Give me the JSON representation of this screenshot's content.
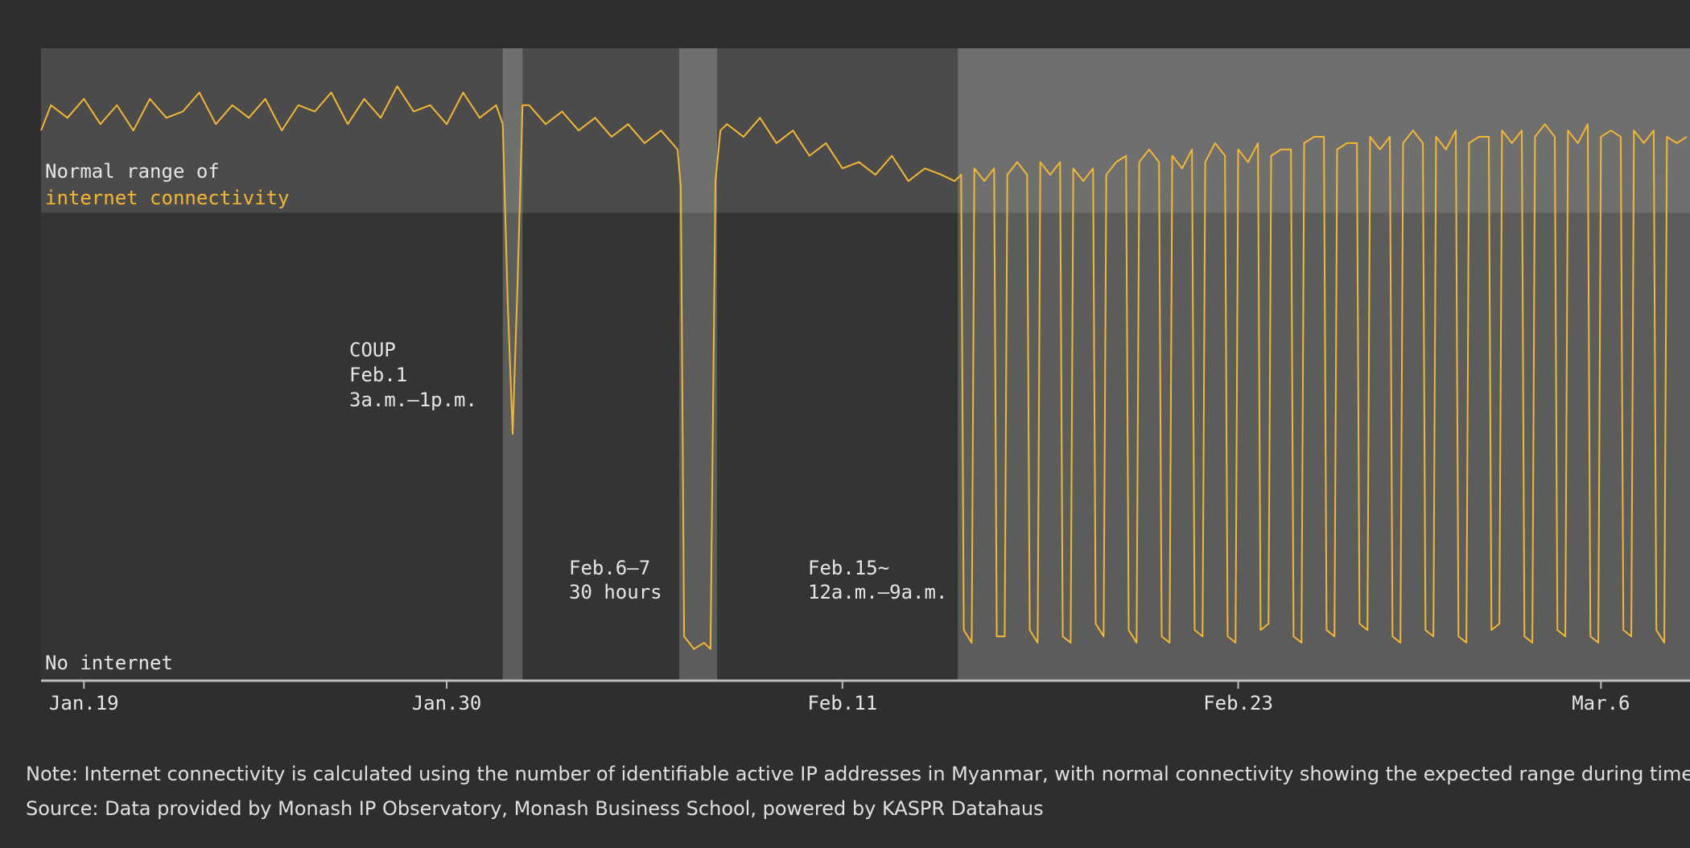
{
  "chart_data": {
    "type": "line",
    "x": [
      17.7,
      18,
      18.5,
      19,
      19.5,
      20,
      20.5,
      21,
      21.5,
      22,
      22.5,
      23,
      23.5,
      24,
      24.5,
      25,
      25.5,
      26,
      26.5,
      27,
      27.5,
      28,
      28.5,
      29,
      29.5,
      30,
      30.5,
      31,
      31.5,
      31.7,
      31.85,
      32.0,
      32.15,
      32.3,
      32.5,
      33,
      33.5,
      34,
      34.5,
      35,
      35.5,
      36,
      36.5,
      37.0,
      37.1,
      37.2,
      37.5,
      37.8,
      38.0,
      38.15,
      38.3,
      38.5,
      39,
      39.5,
      40,
      40.5,
      41,
      41.5,
      42,
      42.5,
      43,
      43.5,
      44,
      44.5,
      45,
      45.4,
      45.6,
      45.68,
      45.92,
      46,
      46.3,
      46.6,
      46.68,
      46.92,
      47,
      47.3,
      47.6,
      47.68,
      47.92,
      48,
      48.3,
      48.6,
      48.68,
      48.92,
      49,
      49.3,
      49.6,
      49.68,
      49.92,
      50,
      50.3,
      50.6,
      50.68,
      50.92,
      51,
      51.3,
      51.6,
      51.68,
      51.92,
      52,
      52.3,
      52.6,
      52.68,
      52.92,
      53,
      53.3,
      53.6,
      53.68,
      53.92,
      54,
      54.3,
      54.6,
      54.68,
      54.92,
      55,
      55.3,
      55.6,
      55.68,
      55.92,
      56,
      56.3,
      56.6,
      56.68,
      56.92,
      57,
      57.3,
      57.6,
      57.68,
      57.92,
      58,
      58.3,
      58.6,
      58.68,
      58.92,
      59,
      59.3,
      59.6,
      59.68,
      59.92,
      60,
      60.3,
      60.6,
      60.68,
      60.92,
      61,
      61.3,
      61.6,
      61.68,
      61.92,
      62,
      62.3,
      62.6,
      62.68,
      62.92,
      63,
      63.3,
      63.6,
      63.68,
      63.92,
      64,
      64.3,
      64.6,
      64.68,
      64.92,
      65,
      65.3,
      65.6,
      65.68,
      65.92,
      66,
      66.3,
      66.6,
      66.68,
      66.92,
      67,
      67.3,
      67.6
    ],
    "series": [
      {
        "color": "#f5b731",
        "values": [
          87,
          91,
          89,
          92,
          88,
          91,
          87,
          92,
          89,
          90,
          93,
          88,
          91,
          89,
          92,
          87,
          91,
          90,
          93,
          88,
          92,
          89,
          94,
          90,
          91,
          88,
          93,
          89,
          91,
          88,
          60,
          39,
          63,
          91,
          91,
          88,
          90,
          87,
          89,
          86,
          88,
          85,
          87,
          84,
          78,
          7,
          5,
          6,
          5,
          79,
          87,
          88,
          86,
          89,
          85,
          87,
          83,
          85,
          81,
          82,
          80,
          83,
          79,
          81,
          80,
          79,
          80,
          8,
          6,
          81,
          79,
          81,
          7,
          7,
          80,
          82,
          80,
          8,
          6,
          82,
          80,
          82,
          7,
          6,
          81,
          79,
          81,
          9,
          7,
          80,
          82,
          83,
          8,
          6,
          82,
          84,
          82,
          7,
          6,
          83,
          81,
          84,
          8,
          7,
          82,
          85,
          83,
          7,
          6,
          84,
          82,
          85,
          8,
          9,
          83,
          84,
          84,
          7,
          6,
          85,
          86,
          86,
          8,
          7,
          84,
          85,
          85,
          9,
          8,
          86,
          84,
          86,
          7,
          6,
          85,
          87,
          85,
          8,
          7,
          86,
          84,
          87,
          7,
          6,
          85,
          86,
          86,
          8,
          9,
          87,
          85,
          87,
          7,
          6,
          86,
          88,
          86,
          8,
          7,
          87,
          85,
          88,
          7,
          6,
          86,
          87,
          86,
          8,
          7,
          87,
          85,
          87,
          8,
          6,
          86,
          85,
          86
        ]
      }
    ],
    "xlim": [
      17.7,
      67.7
    ],
    "ylim": [
      0,
      100
    ],
    "xticks": [
      {
        "value": 19,
        "label": "Jan.19"
      },
      {
        "value": 30,
        "label": "Jan.30"
      },
      {
        "value": 42,
        "label": "Feb.11"
      },
      {
        "value": 54,
        "label": "Feb.23"
      },
      {
        "value": 65,
        "label": "Mar.6"
      }
    ],
    "normal_range": [
      74,
      100
    ],
    "highlights": [
      [
        31.7,
        32.3
      ],
      [
        37.05,
        38.2
      ],
      [
        45.5,
        67.7
      ]
    ],
    "annotations": [
      {
        "lines": [
          "Normal range of",
          "internet connectivity"
        ]
      },
      {
        "lines": [
          "No internet"
        ]
      },
      {
        "lines": [
          "COUP",
          "Feb.1",
          "3a.m.–1p.m."
        ]
      },
      {
        "lines": [
          "Feb.6–7",
          "30 hours"
        ]
      },
      {
        "lines": [
          "Feb.15~",
          "12a.m.–9a.m."
        ]
      }
    ],
    "notes": [
      "Note: Internet connectivity is calculated using the number of identifiable active IP addresses in Myanmar, with normal connectivity showing the expected range during times",
      "Source: Data provided by Monash IP Observatory, Monash Business School, powered by KASPR Datahaus"
    ]
  }
}
